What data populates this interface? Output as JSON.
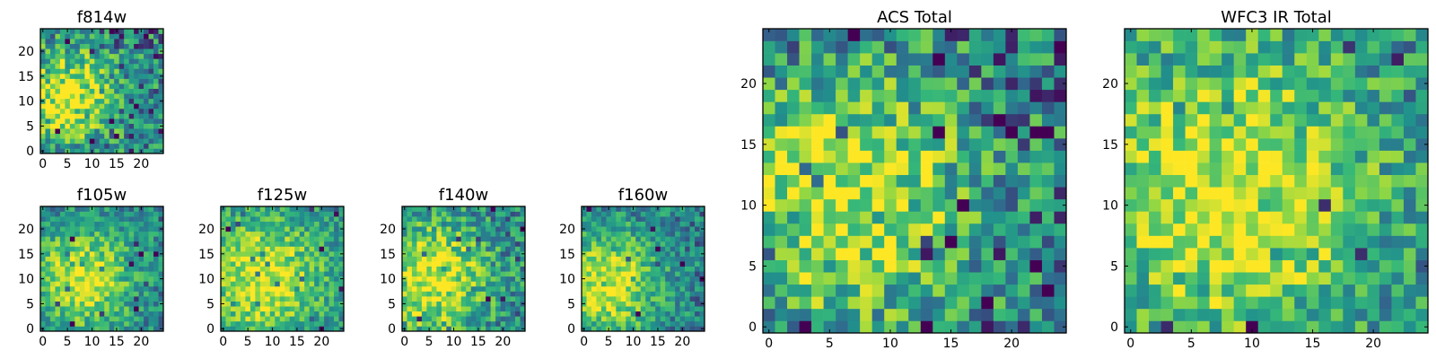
{
  "figure": {
    "colormap": [
      "#440154",
      "#31688e",
      "#21918c",
      "#35b779",
      "#90d743",
      "#fde725"
    ],
    "frame_color": "#000000"
  },
  "chart_data": [
    {
      "type": "heatmap",
      "title": "f814w",
      "grid_size": 25,
      "xlim": [
        -0.5,
        24.5
      ],
      "ylim": [
        -0.5,
        24.5
      ],
      "xticks": [
        0,
        5,
        10,
        15,
        20
      ],
      "yticks": [
        0,
        5,
        10,
        15,
        20
      ],
      "peak": [
        5,
        11
      ],
      "spread": 6.5,
      "noise": 0.35,
      "seed": 11
    },
    {
      "type": "heatmap",
      "title": "f105w",
      "grid_size": 25,
      "xlim": [
        -0.5,
        24.5
      ],
      "ylim": [
        -0.5,
        24.5
      ],
      "xticks": [
        0,
        5,
        10,
        15,
        20
      ],
      "yticks": [
        0,
        5,
        10,
        15,
        20
      ],
      "peak": [
        8,
        10
      ],
      "spread": 7,
      "noise": 0.25,
      "seed": 23
    },
    {
      "type": "heatmap",
      "title": "f125w",
      "grid_size": 25,
      "xlim": [
        -0.5,
        24.5
      ],
      "ylim": [
        -0.5,
        24.5
      ],
      "xticks": [
        0,
        5,
        10,
        15,
        20
      ],
      "yticks": [
        0,
        5,
        10,
        15,
        20
      ],
      "peak": [
        8,
        10
      ],
      "spread": 9,
      "noise": 0.25,
      "seed": 37
    },
    {
      "type": "heatmap",
      "title": "f140w",
      "grid_size": 25,
      "xlim": [
        -0.5,
        24.5
      ],
      "ylim": [
        -0.5,
        24.5
      ],
      "xticks": [
        0,
        5,
        10,
        15,
        20
      ],
      "yticks": [
        0,
        5,
        10,
        15,
        20
      ],
      "peak": [
        6,
        10
      ],
      "spread": 8,
      "noise": 0.3,
      "seed": 41
    },
    {
      "type": "heatmap",
      "title": "f160w",
      "grid_size": 25,
      "xlim": [
        -0.5,
        24.5
      ],
      "ylim": [
        -0.5,
        24.5
      ],
      "xticks": [
        0,
        5,
        10,
        15,
        20
      ],
      "yticks": [
        0,
        5,
        10,
        15,
        20
      ],
      "peak": [
        5,
        9
      ],
      "spread": 7,
      "noise": 0.25,
      "seed": 53
    },
    {
      "type": "heatmap",
      "title": "ACS Total",
      "grid_size": 25,
      "xlim": [
        -0.5,
        24.5
      ],
      "ylim": [
        -0.5,
        24.5
      ],
      "xticks": [
        0,
        5,
        10,
        15,
        20
      ],
      "yticks": [
        0,
        5,
        10,
        15,
        20
      ],
      "peak": [
        6,
        11
      ],
      "spread": 7,
      "noise": 0.35,
      "seed": 67
    },
    {
      "type": "heatmap",
      "title": "WFC3 IR Total",
      "grid_size": 25,
      "xlim": [
        -0.5,
        24.5
      ],
      "ylim": [
        -0.5,
        24.5
      ],
      "xticks": [
        0,
        5,
        10,
        15,
        20
      ],
      "yticks": [
        0,
        5,
        10,
        15,
        20
      ],
      "peak": [
        8,
        11
      ],
      "spread": 9,
      "noise": 0.3,
      "seed": 79
    }
  ]
}
